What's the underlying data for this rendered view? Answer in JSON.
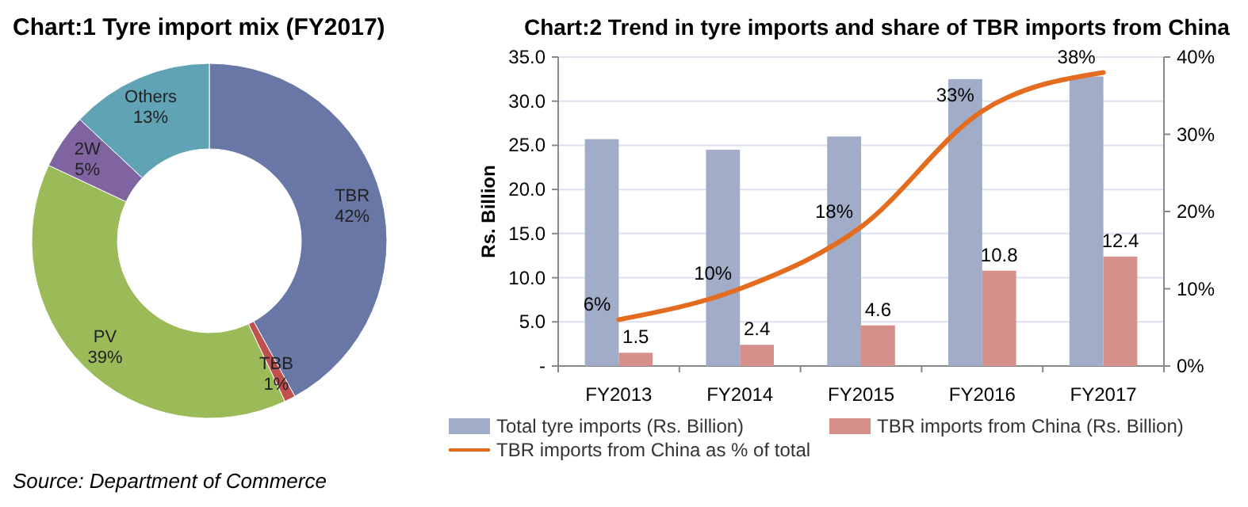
{
  "chart_data": [
    {
      "type": "donut",
      "title": "Chart:1 Tyre import mix (FY2017)",
      "categories": [
        "TBR",
        "TBB",
        "PV",
        "2W",
        "Others"
      ],
      "values": [
        42,
        1,
        39,
        5,
        13
      ],
      "colors": [
        "#6877a5",
        "#c0504d",
        "#9bbb59",
        "#8064a2",
        "#5fa3b5"
      ],
      "value_labels": [
        "42%",
        "1%",
        "39%",
        "5%",
        "13%"
      ],
      "annotations": [
        "Source: Department of Commerce"
      ]
    },
    {
      "type": "bar",
      "title": "Chart:2 Trend in tyre imports and share of TBR imports from China",
      "ylabel": "Rs. Billion",
      "categories": [
        "FY2013",
        "FY2014",
        "FY2015",
        "FY2016",
        "FY2017"
      ],
      "series": [
        {
          "name": "Total tyre imports (Rs. Billion)",
          "color": "#a1acc8",
          "values": [
            25.7,
            24.5,
            26.0,
            32.5,
            32.8
          ]
        },
        {
          "name": "TBR imports from China (Rs. Billion)",
          "color": "#d6908c",
          "values": [
            1.5,
            2.4,
            4.6,
            10.8,
            12.4
          ],
          "value_labels": [
            "1.5",
            "2.4",
            "4.6",
            "10.8",
            "12.4"
          ]
        },
        {
          "name": "TBR imports from China as % of total",
          "type": "line",
          "axis": "y2",
          "color": "#e36c1f",
          "values": [
            6,
            10,
            18,
            33,
            38
          ],
          "value_labels": [
            "6%",
            "10%",
            "18%",
            "33%",
            "38%"
          ]
        }
      ],
      "ylim": [
        0,
        35
      ],
      "yticks": [
        {
          "value": 0,
          "label": "-"
        },
        {
          "value": 5,
          "label": "5.0"
        },
        {
          "value": 10,
          "label": "10.0"
        },
        {
          "value": 15,
          "label": "15.0"
        },
        {
          "value": 20,
          "label": "20.0"
        },
        {
          "value": 25,
          "label": "25.0"
        },
        {
          "value": 30,
          "label": "30.0"
        },
        {
          "value": 35,
          "label": "35.0"
        }
      ],
      "y2lim": [
        0,
        40
      ],
      "y2ticks": [
        {
          "value": 0,
          "label": "0%"
        },
        {
          "value": 10,
          "label": "10%"
        },
        {
          "value": 20,
          "label": "20%"
        },
        {
          "value": 30,
          "label": "30%"
        },
        {
          "value": 40,
          "label": "40%"
        }
      ],
      "grid": "y",
      "legend": "bottom",
      "marker": "none"
    }
  ]
}
